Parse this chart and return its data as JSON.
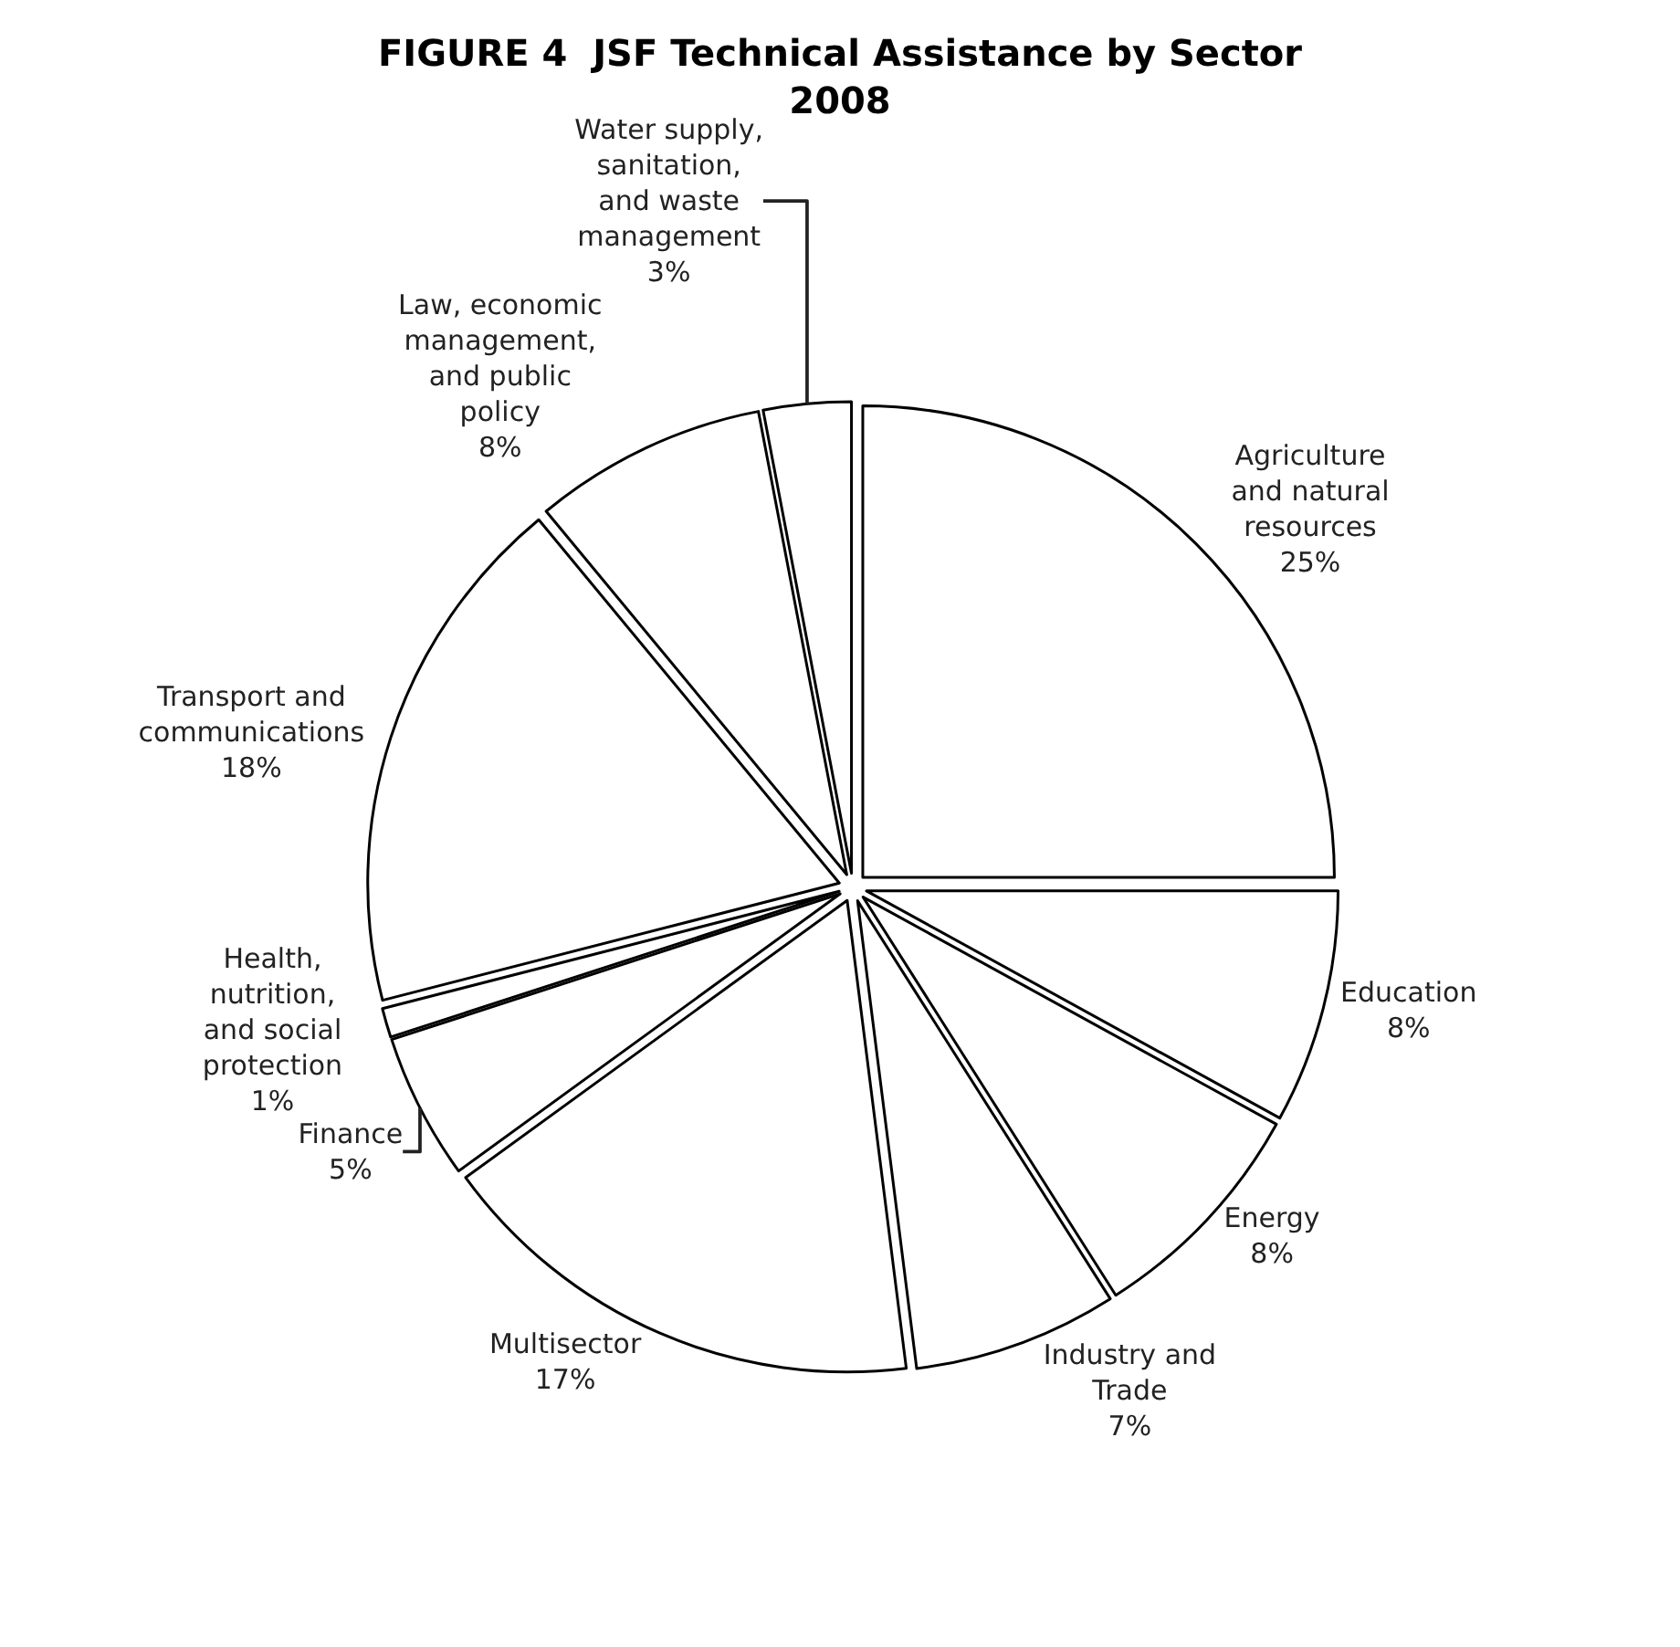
{
  "chart_data": {
    "type": "pie",
    "title": "FIGURE 4  JSF Technical Assistance by Sector 2008",
    "categories": [
      "Agriculture and natural resources",
      "Education",
      "Energy",
      "Industry and Trade",
      "Multisector",
      "Finance",
      "Health, nutrition, and social protection",
      "Transport and communications",
      "Law, economic management, and public policy",
      "Water supply, sanitation, and waste management"
    ],
    "values": [
      25,
      8,
      8,
      7,
      17,
      5,
      1,
      18,
      8,
      3
    ],
    "value_labels": [
      "25%",
      "8%",
      "8%",
      "7%",
      "17%",
      "5%",
      "1%",
      "18%",
      "8%",
      "3%"
    ],
    "colors": [
      "#ffffff",
      "#ffffff",
      "#ffffff",
      "#ffffff",
      "#ffffff",
      "#ffffff",
      "#ffffff",
      "#ffffff",
      "#ffffff",
      "#ffffff"
    ],
    "legend": false
  }
}
